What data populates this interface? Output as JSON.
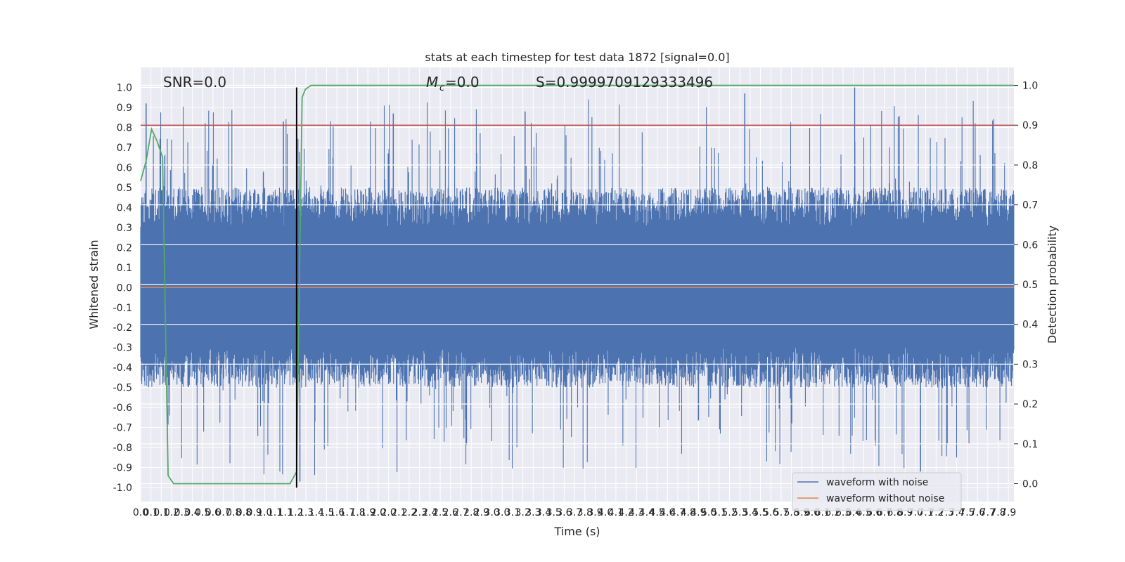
{
  "chart_data": {
    "type": "line",
    "title": "stats at each timestep for test data 1872 [signal=0.0]",
    "xlabel": "Time (s)",
    "ylabel": "Whitened strain",
    "y2label": "Detection probability",
    "xlim": [
      0.0,
      7.95
    ],
    "ylim": [
      -1.07,
      1.1
    ],
    "y2lim": [
      -0.045,
      1.045
    ],
    "x_ticks": [
      "0.0",
      "0.1",
      "0.1",
      "0.2",
      "0.3",
      "0.4",
      "0.5",
      "0.6",
      "0.7",
      "0.8",
      "0.8",
      "0.9",
      "1.0",
      "1.1",
      "1.1",
      "1.2",
      "1.3",
      "1.4",
      "1.5",
      "1.6",
      "1.7",
      "1.8",
      "1.9",
      "2.0",
      "2.0",
      "2.1",
      "2.2",
      "2.3",
      "2.4",
      "2.5",
      "2.6",
      "2.7",
      "2.8",
      "2.9",
      "3.0",
      "3.0",
      "3.1",
      "3.2",
      "3.3",
      "3.4",
      "3.5",
      "3.6",
      "3.7",
      "3.8",
      "3.9",
      "4.0",
      "4.1",
      "4.2",
      "4.3",
      "4.4",
      "4.5",
      "4.6",
      "4.7",
      "4.8",
      "4.9",
      "5.0",
      "5.1",
      "5.2",
      "5.3",
      "5.4",
      "5.5",
      "5.6",
      "5.7",
      "5.8",
      "5.9",
      "6.0",
      "6.1",
      "6.2",
      "6.3",
      "6.4",
      "6.5",
      "6.6",
      "6.7",
      "6.8",
      "6.9",
      "7.0",
      "7.1",
      "7.2",
      "7.3",
      "7.4",
      "7.5",
      "7.6",
      "7.7",
      "7.8",
      "7.9"
    ],
    "y_ticks": [
      "1.0",
      "0.9",
      "0.8",
      "0.7",
      "0.6",
      "0.5",
      "0.4",
      "0.3",
      "0.2",
      "0.1",
      "0.0",
      "-0.1",
      "-0.2",
      "-0.3",
      "-0.4",
      "-0.5",
      "-0.6",
      "-0.7",
      "-0.8",
      "-0.9",
      "-1.0"
    ],
    "y2_ticks": [
      "1.0",
      "0.9",
      "0.8",
      "0.7",
      "0.6",
      "0.5",
      "0.4",
      "0.3",
      "0.2",
      "0.1",
      "0.0"
    ],
    "annotations": {
      "snr": "SNR=0.0",
      "mc": "=0.0",
      "mc_symbol": "M",
      "mc_sub": "c",
      "s": "S=0.9999709129333496"
    },
    "legend": {
      "position": "lower-right",
      "entries": [
        "waveform with noise",
        "waveform without noise"
      ]
    },
    "series": [
      {
        "name": "waveform with noise",
        "color": "#4c72b0",
        "axis": "left",
        "envelope_typical": 0.4,
        "envelope_peak_max": 1.0,
        "envelope_peak_min": -0.97
      },
      {
        "name": "waveform without noise",
        "color": "#dd8452",
        "axis": "left",
        "values_constant": 0.0
      },
      {
        "axis": "right",
        "color": "#55a868",
        "x": [
          0.0,
          0.05,
          0.1,
          0.15,
          0.2,
          0.25,
          0.3,
          0.4,
          0.6,
          0.8,
          1.0,
          1.2,
          1.36,
          1.42,
          1.47,
          1.5,
          1.55,
          7.95
        ],
        "y": [
          0.76,
          0.81,
          0.89,
          0.86,
          0.82,
          0.02,
          0.0,
          0.0,
          0.0,
          0.0,
          0.0,
          0.0,
          0.0,
          0.03,
          0.97,
          0.99,
          1.0,
          1.0
        ]
      }
    ],
    "threshold_line": {
      "axis": "right",
      "value": 0.9,
      "color": "#c44e52"
    },
    "event_line": {
      "x": 1.42,
      "color": "#000000"
    },
    "grid": true
  }
}
